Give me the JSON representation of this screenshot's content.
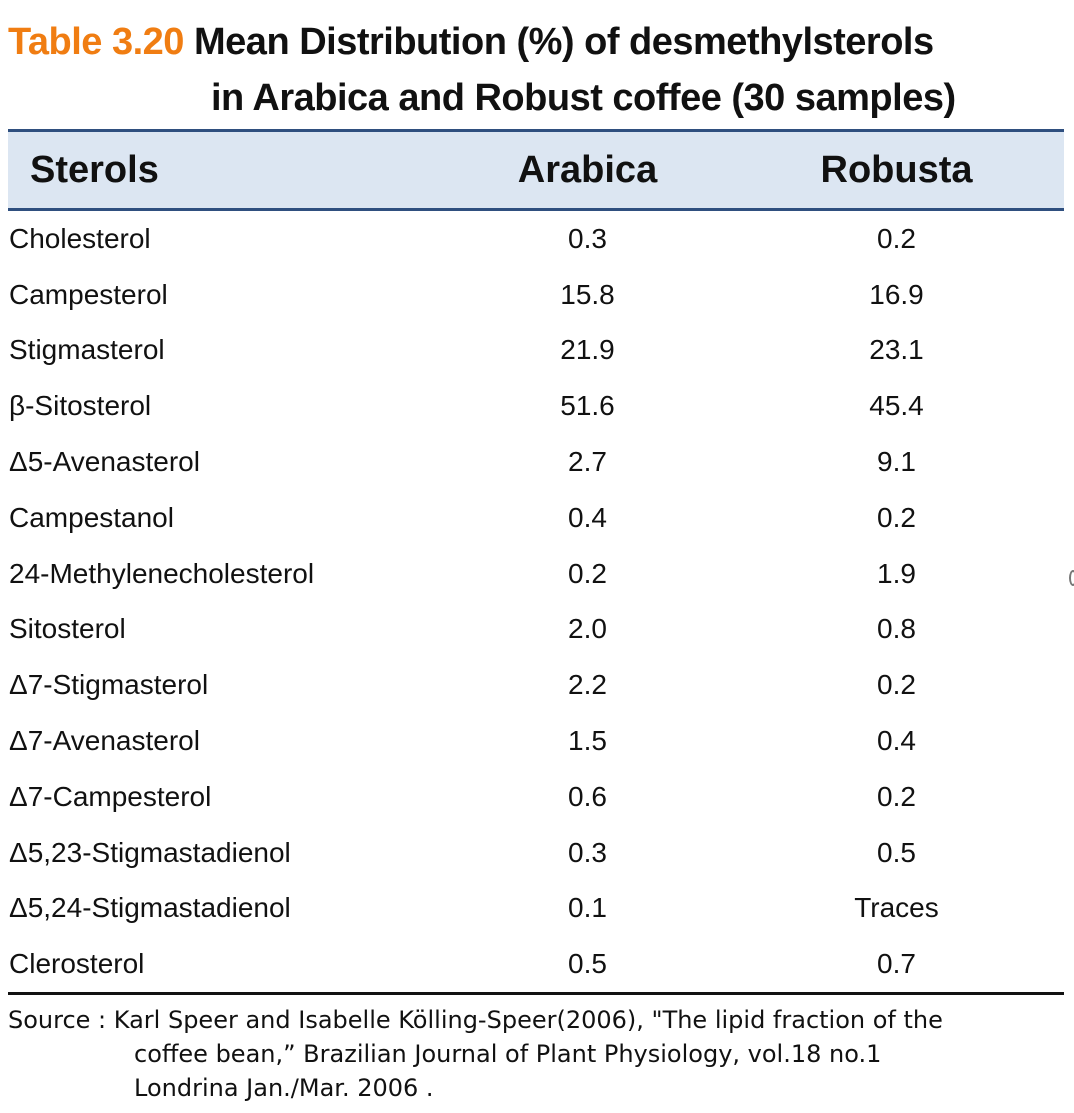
{
  "title": {
    "number": "Table 3.20",
    "line1": "Mean Distribution (%) of desmethylsterols",
    "line2": "in Arabica and Robust coffee (30 samples)"
  },
  "table": {
    "headers": [
      "Sterols",
      "Arabica",
      "Robusta"
    ],
    "rows": [
      [
        "Cholesterol",
        "0.3",
        "0.2"
      ],
      [
        "Campesterol",
        "15.8",
        "16.9"
      ],
      [
        "Stigmasterol",
        "21.9",
        "23.1"
      ],
      [
        "β-Sitosterol",
        "51.6",
        "45.4"
      ],
      [
        "Δ5-Avenasterol",
        "2.7",
        "9.1"
      ],
      [
        "Campestanol",
        "0.4",
        "0.2"
      ],
      [
        "24-Methylenecholesterol",
        "0.2",
        "1.9"
      ],
      [
        "Sitosterol",
        "2.0",
        "0.8"
      ],
      [
        "Δ7-Stigmasterol",
        "2.2",
        "0.2"
      ],
      [
        "Δ7-Avenasterol",
        "1.5",
        "0.4"
      ],
      [
        "Δ7-Campesterol",
        "0.6",
        "0.2"
      ],
      [
        "Δ5,23-Stigmastadienol",
        "0.3",
        "0.5"
      ],
      [
        "Δ5,24-Stigmastadienol",
        "0.1",
        "Traces"
      ],
      [
        "Clerosterol",
        "0.5",
        "0.7"
      ]
    ]
  },
  "source": {
    "line1": "Source : Karl Speer and Isabelle Kölling-Speer(2006), \"The lipid fraction of the",
    "line2": "coffee bean,” Brazilian Journal of Plant Physiology, vol.18 no.1",
    "line3": "Londrina Jan./Mar. 2006 ."
  },
  "colors": {
    "accent": "#f07d12",
    "header_bg": "#dce6f2",
    "header_rule": "#2f4f7f"
  }
}
